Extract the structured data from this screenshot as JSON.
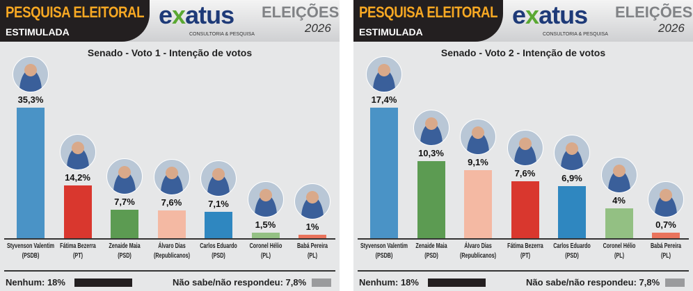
{
  "header": {
    "title": "PESQUISA ELEITORAL",
    "subtitle": "ESTIMULADA",
    "logo": "exatus",
    "logo_sub": "CONSULTORIA & PESQUISA",
    "badge": "ELEIÇÕES",
    "year": "2026"
  },
  "chart_data": [
    {
      "type": "bar",
      "title": "Senado - Voto 1 - Intenção de votos",
      "categories": [
        "Styvenson Valentim",
        "Fátima Bezerra",
        "Zenaide Maia",
        "Álvaro Dias",
        "Carlos Eduardo",
        "Coronel Hélio",
        "Babá Pereira"
      ],
      "parties": [
        "(PSDB)",
        "(PT)",
        "(PSD)",
        "(Republicanos)",
        "(PSD)",
        "(PL)",
        "(PL)"
      ],
      "values": [
        35.3,
        14.2,
        7.7,
        7.6,
        7.1,
        1.5,
        1
      ],
      "labels": [
        "35,3%",
        "14,2%",
        "7,7%",
        "7,6%",
        "7,1%",
        "1,5%",
        "1%"
      ],
      "colors": [
        "#4a93c6",
        "#d9372e",
        "#5c9b52",
        "#f4b9a3",
        "#2f87c0",
        "#93c083",
        "#e9735c"
      ],
      "footer": {
        "none": "Nenhum: 18%",
        "dk": "Não sabe/não respondeu: 7,8%"
      }
    },
    {
      "type": "bar",
      "title": "Senado - Voto 2 - Intenção de votos",
      "categories": [
        "Styvenson Valentim",
        "Zenaide Maia",
        "Álvaro Dias",
        "Fátima Bezerra",
        "Carlos Eduardo",
        "Coronel Hélio",
        "Babá Pereira"
      ],
      "parties": [
        "(PSDB)",
        "(PSD)",
        "(Republicanos)",
        "(PT)",
        "(PSD)",
        "(PL)",
        "(PL)"
      ],
      "values": [
        17.4,
        10.3,
        9.1,
        7.6,
        6.9,
        4,
        0.7
      ],
      "labels": [
        "17,4%",
        "10,3%",
        "9,1%",
        "7,6%",
        "6,9%",
        "4%",
        "0,7%"
      ],
      "colors": [
        "#4a93c6",
        "#5c9b52",
        "#f4b9a3",
        "#d9372e",
        "#2f87c0",
        "#93c083",
        "#e9735c"
      ],
      "footer": {
        "none": "Nenhum: 18%",
        "dk": "Não sabe/não respondeu: 7,8%"
      }
    }
  ]
}
